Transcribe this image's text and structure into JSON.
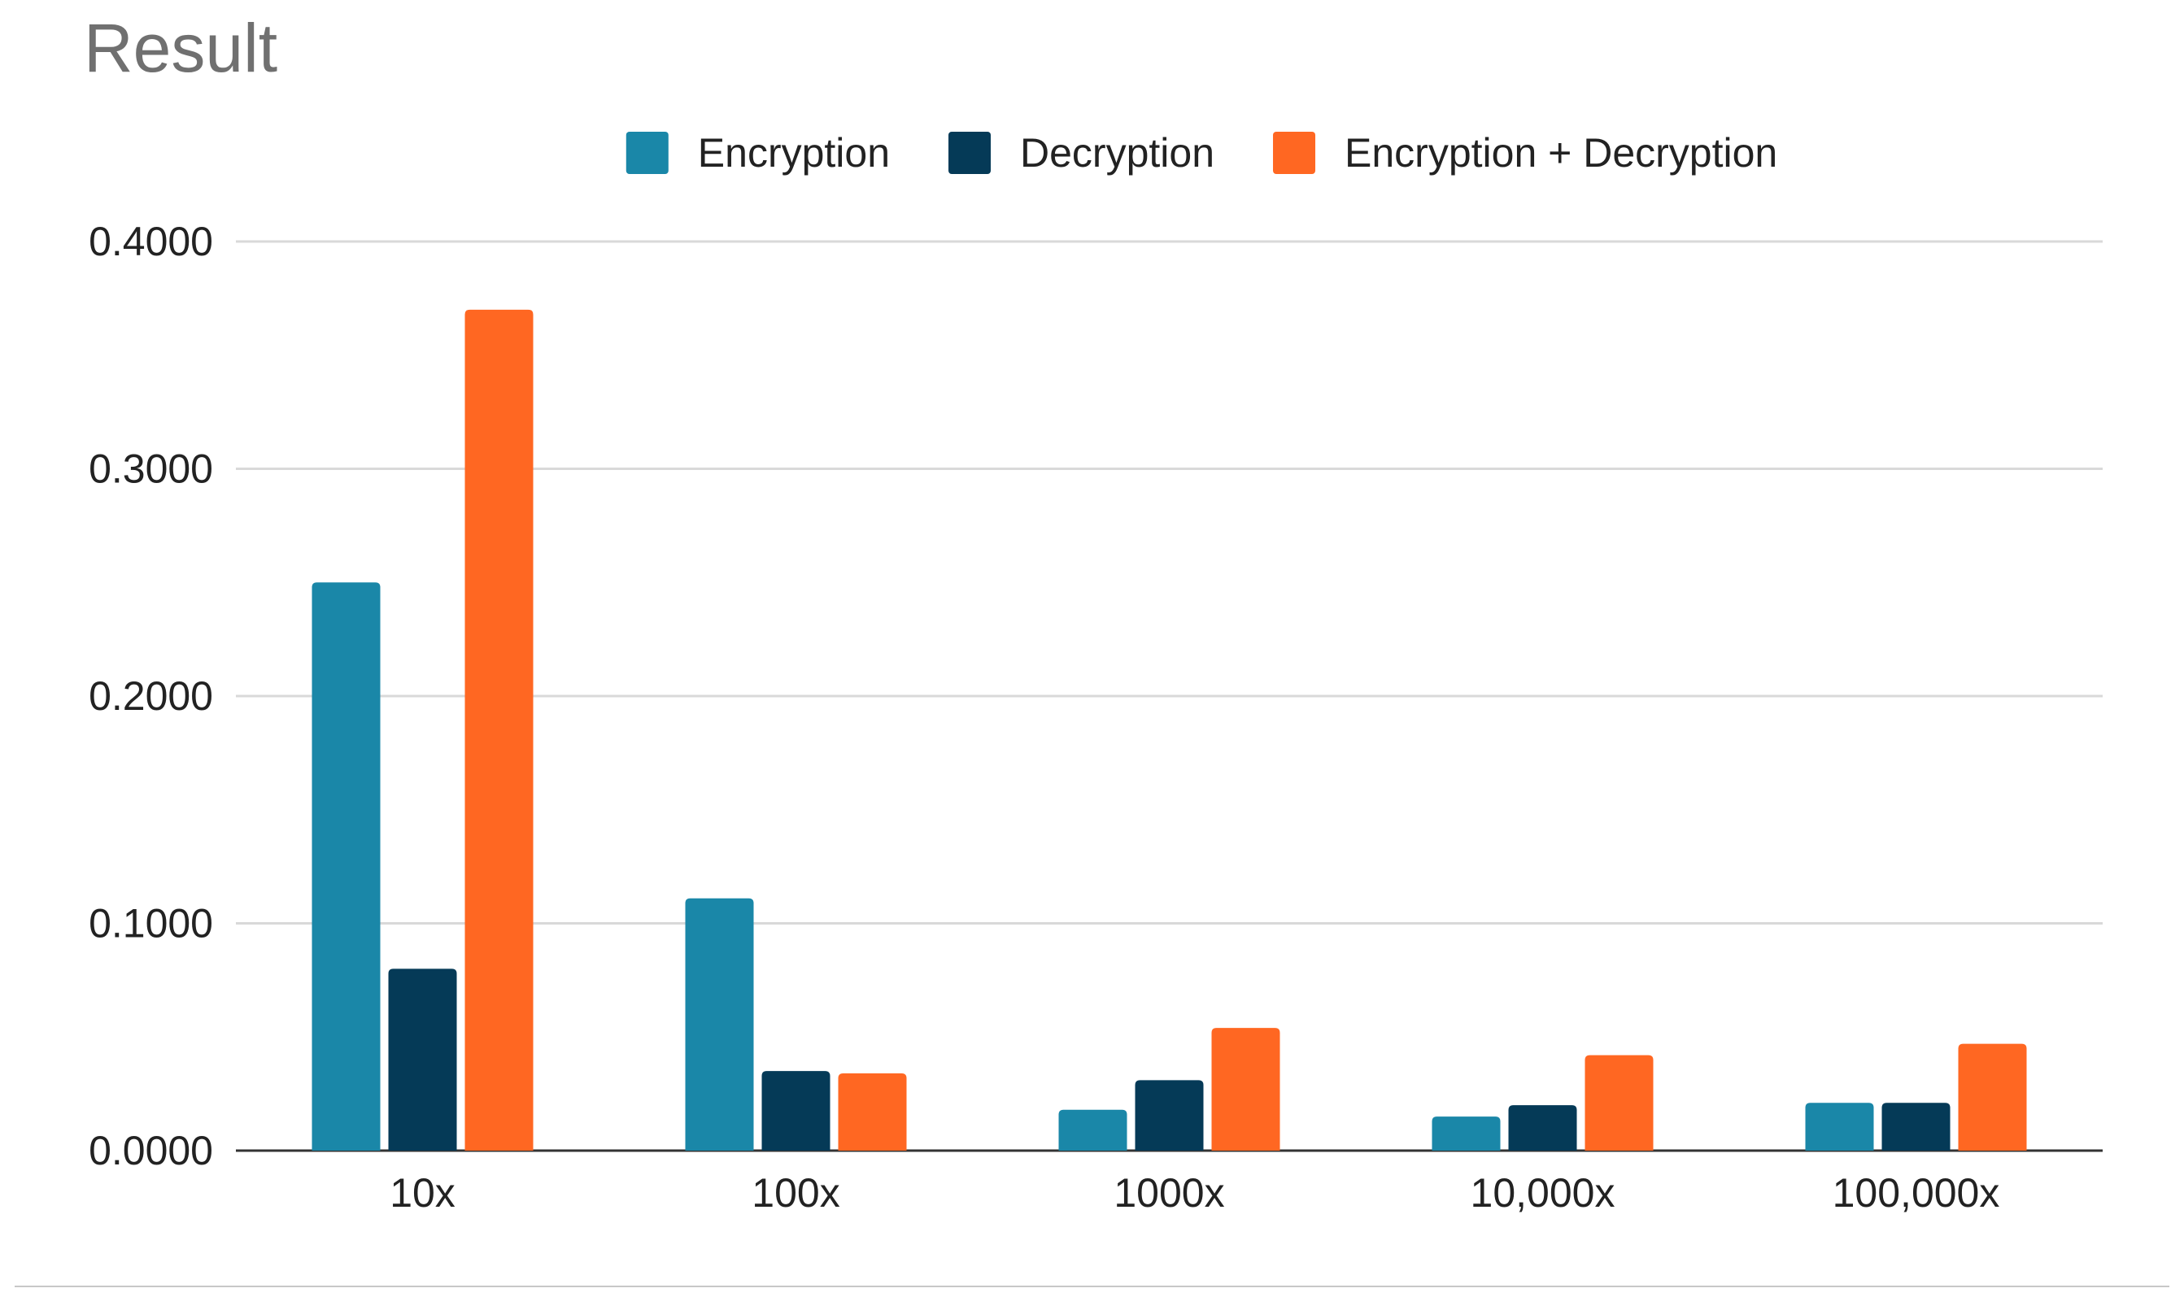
{
  "chart_data": {
    "type": "bar",
    "title": "Result",
    "categories": [
      "10x",
      "100x",
      "1000x",
      "10,000x",
      "100,000x"
    ],
    "series": [
      {
        "name": "Encryption",
        "color": "#1a87a8",
        "values": [
          0.25,
          0.111,
          0.018,
          0.015,
          0.021
        ]
      },
      {
        "name": "Decryption",
        "color": "#053a57",
        "values": [
          0.08,
          0.035,
          0.031,
          0.02,
          0.021
        ]
      },
      {
        "name": "Encryption + Decryption",
        "color": "#ff6722",
        "values": [
          0.37,
          0.034,
          0.054,
          0.042,
          0.047
        ]
      }
    ],
    "ylim": [
      0,
      0.4
    ],
    "yticks": [
      0,
      0.1,
      0.2,
      0.3,
      0.4
    ],
    "ytick_labels": [
      "0.0000",
      "0.1000",
      "0.2000",
      "0.3000",
      "0.4000"
    ],
    "xlabel": "",
    "ylabel": "",
    "grid": true,
    "legend_position": "top-center",
    "colors": {
      "gridline": "#d9d9d9",
      "baseline": "#333333",
      "title": "#707070",
      "text": "#222222",
      "bottom_rule": "#c8c8c8"
    }
  }
}
